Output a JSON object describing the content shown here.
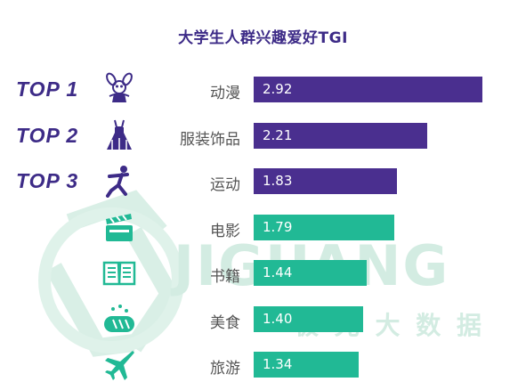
{
  "chart_data": {
    "type": "bar",
    "orientation": "horizontal",
    "title": "大学生人群兴趣爱好TGI",
    "categories": [
      "动漫",
      "服装饰品",
      "运动",
      "电影",
      "书籍",
      "美食",
      "旅游"
    ],
    "values": [
      2.92,
      2.21,
      1.83,
      1.79,
      1.44,
      1.4,
      1.34
    ],
    "value_labels": [
      "2.92",
      "2.21",
      "1.83",
      "1.79",
      "1.44",
      "1.40",
      "1.34"
    ],
    "ranks": [
      "TOP 1",
      "TOP 2",
      "TOP 3",
      "",
      "",
      "",
      ""
    ],
    "icons": [
      "anime-character-icon",
      "dress-icon",
      "running-person-icon",
      "clapperboard-icon",
      "open-book-icon",
      "bread-icon",
      "airplane-icon"
    ],
    "xlim": [
      0,
      2.92
    ],
    "grid": false,
    "legend": "none"
  },
  "watermark": {
    "brand": "JIGUANG",
    "subtitle": "极 光 大 数 据"
  },
  "colors": {
    "top3_bar": "#4a2f8f",
    "other_bar": "#21b995",
    "title": "#3d2b87",
    "rank": "#3d2b87",
    "icon": "#3d2b87",
    "watermark": "#d3ece2"
  }
}
